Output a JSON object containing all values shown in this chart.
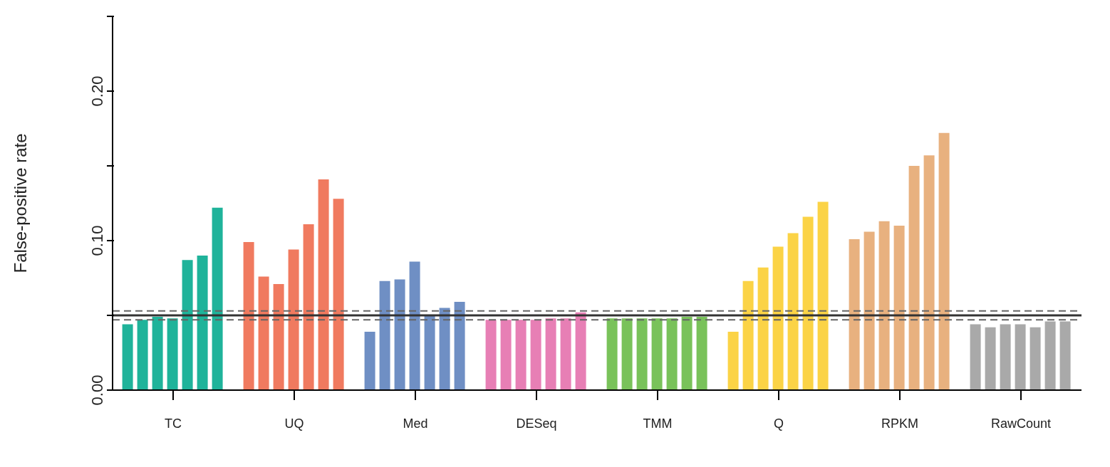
{
  "chart_data": {
    "type": "bar",
    "ylabel": "False-positive rate",
    "categories": [
      "TC",
      "UQ",
      "Med",
      "DESeq",
      "TMM",
      "Q",
      "RPKM",
      "RawCount"
    ],
    "series": [
      {
        "colors": [
          "#1fb39a",
          "#f07a5f",
          "#6f8fc4",
          "#e77fb5",
          "#79c25a",
          "#fbd346",
          "#e8b17f",
          "#a9a9a9"
        ],
        "values": [
          0.044,
          0.099,
          0.039,
          0.047,
          0.048,
          0.039,
          0.101,
          0.044
        ]
      },
      {
        "colors": [
          "#1fb39a",
          "#f07a5f",
          "#6f8fc4",
          "#e77fb5",
          "#79c25a",
          "#fbd346",
          "#e8b17f",
          "#a9a9a9"
        ],
        "values": [
          0.047,
          0.076,
          0.073,
          0.047,
          0.048,
          0.073,
          0.106,
          0.042
        ]
      },
      {
        "colors": [
          "#1fb39a",
          "#f07a5f",
          "#6f8fc4",
          "#e77fb5",
          "#79c25a",
          "#fbd346",
          "#e8b17f",
          "#a9a9a9"
        ],
        "values": [
          0.049,
          0.071,
          0.074,
          0.047,
          0.048,
          0.082,
          0.113,
          0.044
        ]
      },
      {
        "colors": [
          "#1fb39a",
          "#f07a5f",
          "#6f8fc4",
          "#e77fb5",
          "#79c25a",
          "#fbd346",
          "#e8b17f",
          "#a9a9a9"
        ],
        "values": [
          0.048,
          0.094,
          0.086,
          0.047,
          0.048,
          0.096,
          0.11,
          0.044
        ]
      },
      {
        "colors": [
          "#1fb39a",
          "#f07a5f",
          "#6f8fc4",
          "#e77fb5",
          "#79c25a",
          "#fbd346",
          "#e8b17f",
          "#a9a9a9"
        ],
        "values": [
          0.087,
          0.111,
          0.05,
          0.048,
          0.048,
          0.105,
          0.15,
          0.042
        ]
      },
      {
        "colors": [
          "#1fb39a",
          "#f07a5f",
          "#6f8fc4",
          "#e77fb5",
          "#79c25a",
          "#fbd346",
          "#e8b17f",
          "#a9a9a9"
        ],
        "values": [
          0.09,
          0.141,
          0.055,
          0.048,
          0.049,
          0.116,
          0.157,
          0.046
        ]
      },
      {
        "colors": [
          "#1fb39a",
          "#f07a5f",
          "#6f8fc4",
          "#e77fb5",
          "#79c25a",
          "#fbd346",
          "#e8b17f",
          "#a9a9a9"
        ],
        "values": [
          0.122,
          0.128,
          0.059,
          0.052,
          0.049,
          0.126,
          0.172,
          0.046
        ]
      }
    ],
    "ylim": [
      0,
      0.25
    ],
    "yticks": [
      {
        "value": 0,
        "label": "0.00"
      },
      {
        "value": 0.05,
        "label": null
      },
      {
        "value": 0.1,
        "label": "0.10"
      },
      {
        "value": 0.15,
        "label": null
      },
      {
        "value": 0.2,
        "label": "0.20"
      },
      {
        "value": 0.25,
        "label": null
      }
    ],
    "ref_lines": [
      {
        "axis": "y",
        "value": 0.05,
        "color": "#333333",
        "line_style": "solid"
      },
      {
        "axis": "y",
        "value": 0.047,
        "color": "#666666",
        "line_style": "dashed"
      },
      {
        "axis": "y",
        "value": 0.053,
        "color": "#666666",
        "line_style": "dashed"
      }
    ]
  }
}
